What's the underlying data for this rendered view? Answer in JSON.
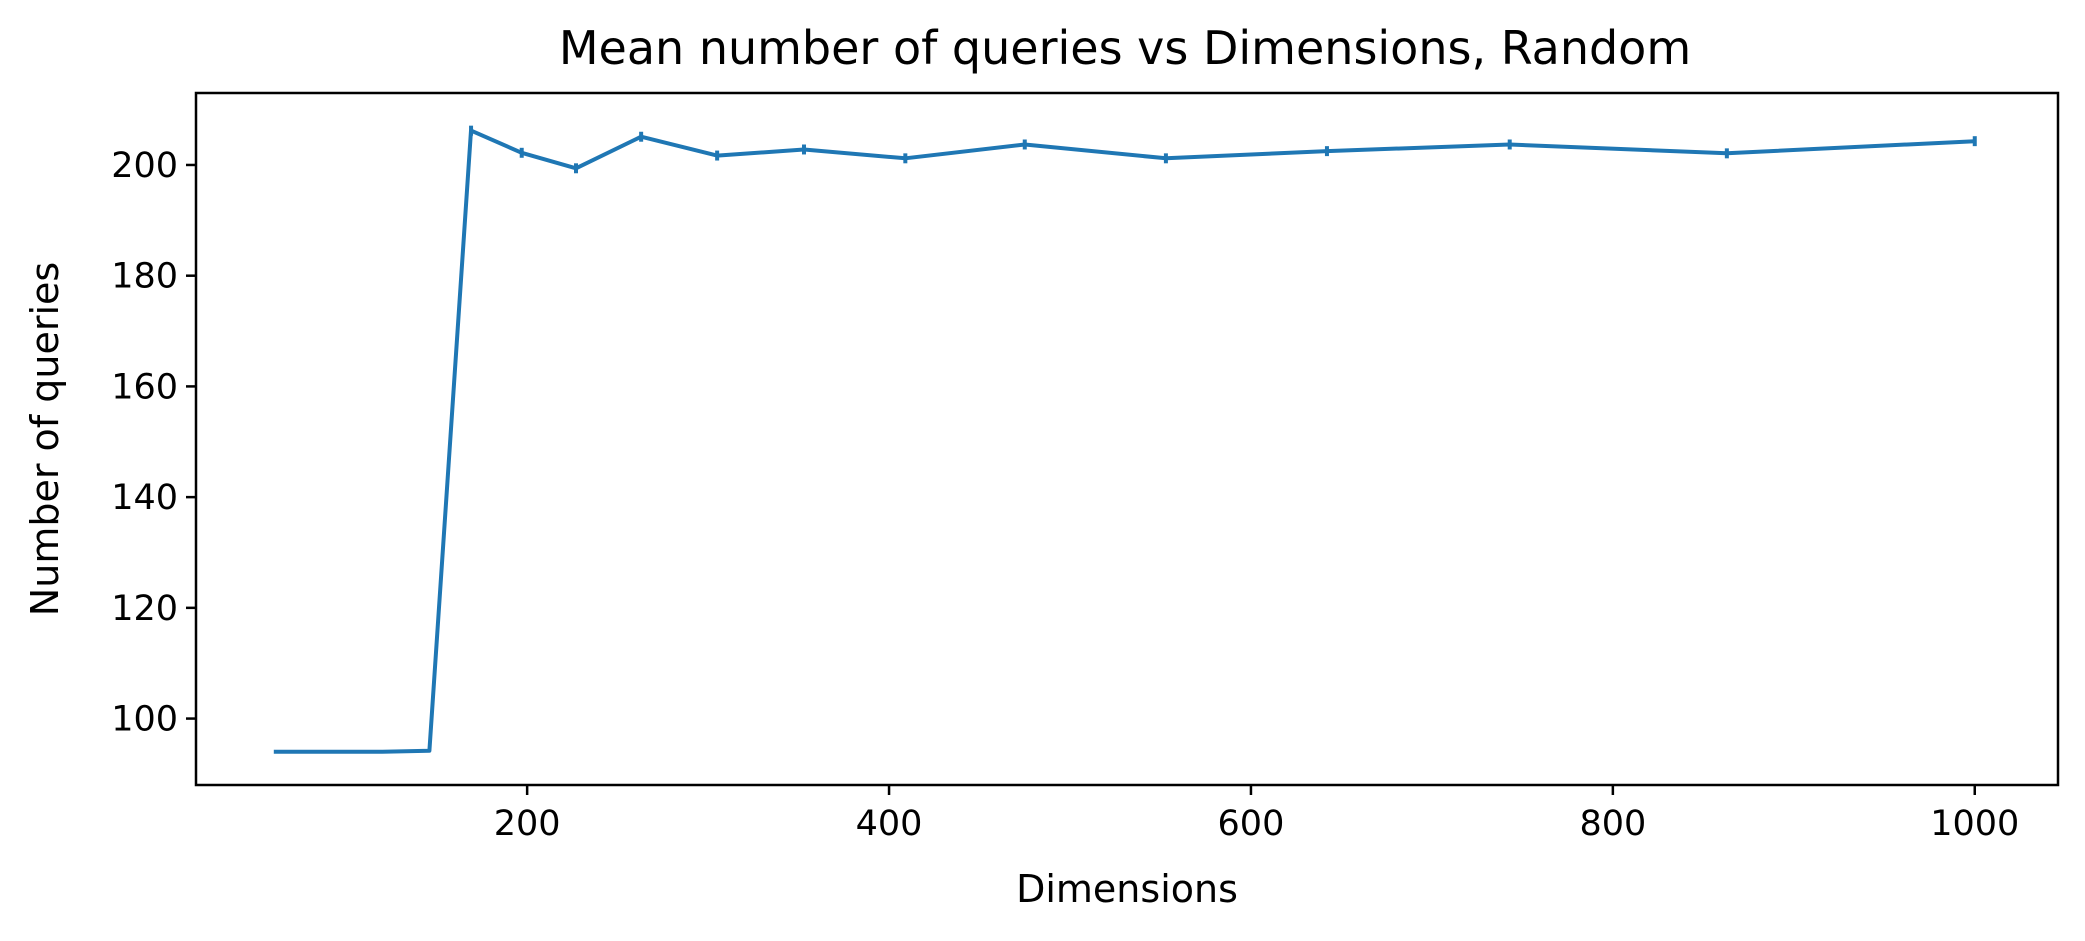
{
  "chart_data": {
    "type": "line",
    "title": "Mean number of queries vs Dimensions, Random",
    "xlabel": "Dimensions",
    "ylabel": "Number of queries",
    "xlim": [
      17,
      1046
    ],
    "ylim": [
      88,
      213
    ],
    "xticks": [
      200,
      400,
      600,
      800,
      1000
    ],
    "yticks": [
      100,
      120,
      140,
      160,
      180,
      200
    ],
    "grid": false,
    "legend": "none",
    "color": "#1f77b4",
    "series": [
      {
        "x": [
          60,
          80,
          100,
          120,
          146,
          169,
          197,
          227,
          263,
          305,
          353,
          409,
          475,
          553,
          642,
          743,
          863,
          1000
        ],
        "y": [
          94,
          94,
          94,
          94,
          94.2,
          206.2,
          202.2,
          199.4,
          205.1,
          201.7,
          202.8,
          201.2,
          203.7,
          201.2,
          202.5,
          203.7,
          202.1,
          204.3
        ],
        "error": [
          0,
          0,
          0,
          0,
          0,
          0.9,
          0.9,
          0.9,
          0.9,
          0.9,
          0.9,
          0.9,
          0.9,
          0.9,
          0.9,
          0.9,
          0.9,
          0.9
        ]
      }
    ]
  }
}
